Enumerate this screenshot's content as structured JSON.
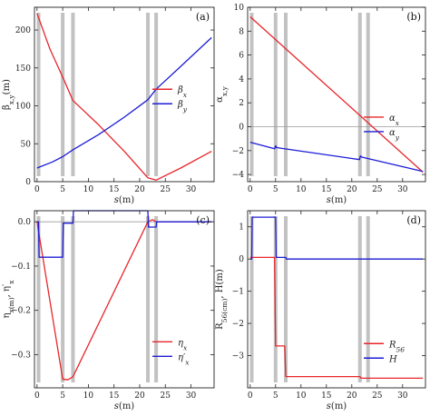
{
  "chart_data": [
    {
      "type": "line",
      "panel_label": "(a)",
      "xlabel": "s(m)",
      "ylabel": "β_{x,y}(m)",
      "xlim": [
        -0.5,
        34.5
      ],
      "ylim": [
        0,
        230
      ],
      "xticks": [
        0,
        5,
        10,
        15,
        20,
        25,
        30
      ],
      "yticks": [
        0,
        50,
        100,
        150,
        200
      ],
      "ytick_labels": [
        "0",
        "50",
        "100",
        "150",
        "200"
      ],
      "legend_position": "center-right",
      "elements_x": [
        0.3,
        5.0,
        7.0,
        21.6,
        23.2
      ],
      "series": [
        {
          "name": "β_x",
          "color": "#e8262b",
          "x": [
            0,
            2.5,
            5,
            7,
            12,
            17,
            21.6,
            23.2,
            28,
            34
          ],
          "y": [
            222,
            175,
            138,
            107,
            75,
            40,
            5,
            2,
            18,
            40
          ]
        },
        {
          "name": "β_y",
          "color": "#1c1cd6",
          "x": [
            0,
            3,
            5,
            7,
            12,
            17,
            21.6,
            23.2,
            28,
            34
          ],
          "y": [
            18,
            26,
            33,
            42,
            62,
            85,
            108,
            122,
            152,
            190
          ]
        }
      ]
    },
    {
      "type": "line",
      "panel_label": "(b)",
      "xlabel": "s(m)",
      "ylabel": "α_{x,y}",
      "xlim": [
        -0.5,
        34.5
      ],
      "ylim": [
        -4.6,
        10
      ],
      "xticks": [
        0,
        5,
        10,
        15,
        20,
        25,
        30
      ],
      "yticks": [
        -4,
        -2,
        0,
        2,
        4,
        6,
        8,
        10
      ],
      "ytick_labels": [
        "−4",
        "−2",
        "0",
        "2",
        "4",
        "6",
        "8",
        "10"
      ],
      "legend_position": "center-right",
      "zero_line": true,
      "elements_x": [
        0.3,
        5.0,
        7.0,
        21.6,
        23.2
      ],
      "series": [
        {
          "name": "α_x",
          "color": "#e8262b",
          "x": [
            0,
            34
          ],
          "y": [
            9.2,
            -3.8
          ]
        },
        {
          "name": "α_y",
          "color": "#1c1cd6",
          "x": [
            0,
            4.8,
            5.0,
            5.2,
            21.5,
            21.7,
            22.0,
            34
          ],
          "y": [
            -1.3,
            -1.85,
            -1.6,
            -1.75,
            -2.75,
            -2.45,
            -2.55,
            -3.75
          ]
        }
      ]
    },
    {
      "type": "line",
      "panel_label": "(c)",
      "xlabel": "s(m)",
      "ylabel": "η_x(m), η′_x",
      "xlim": [
        -0.5,
        34.5
      ],
      "ylim": [
        -0.375,
        0.025
      ],
      "xticks": [
        0,
        5,
        10,
        15,
        20,
        25,
        30
      ],
      "yticks": [
        0,
        -0.1,
        -0.2,
        -0.3
      ],
      "ytick_labels": [
        "0.0",
        "−0.1",
        "−0.2",
        "−0.3"
      ],
      "legend_position": "lower-right",
      "zero_line": true,
      "elements_x": [
        0.3,
        5.0,
        7.0,
        21.6,
        23.2
      ],
      "series": [
        {
          "name": "η_x",
          "color": "#e8262b",
          "x": [
            0,
            5,
            6,
            7,
            21.6,
            22.5,
            23.2,
            34
          ],
          "y": [
            0,
            -0.355,
            -0.357,
            -0.35,
            0,
            0.005,
            0,
            0
          ]
        },
        {
          "name": "η′_x",
          "color": "#1c1cd6",
          "x": [
            0,
            0.3,
            0.4,
            5.0,
            5.1,
            7.0,
            7.1,
            21.6,
            21.7,
            23.2,
            23.3,
            34
          ],
          "y": [
            0,
            0,
            -0.08,
            -0.08,
            -0.003,
            -0.003,
            0.025,
            0.025,
            -0.012,
            -0.012,
            0,
            0
          ]
        }
      ]
    },
    {
      "type": "line",
      "panel_label": "(d)",
      "xlabel": "s(m)",
      "ylabel": "R_56(cm), H(m)",
      "xlim": [
        -0.5,
        34.5
      ],
      "ylim": [
        -4.0,
        1.5
      ],
      "xticks": [
        0,
        5,
        10,
        15,
        20,
        25,
        30
      ],
      "yticks": [
        1,
        0,
        -1,
        -2,
        -3
      ],
      "ytick_labels": [
        "1",
        "0",
        "−1",
        "−2",
        "−3"
      ],
      "legend_position": "center-right",
      "elements_x": [
        0.3,
        5.0,
        7.0,
        21.6,
        23.2
      ],
      "series": [
        {
          "name": "R_56",
          "color": "#e8262b",
          "x": [
            0,
            4.8,
            5.0,
            6.8,
            7.0,
            21.6,
            21.8,
            34
          ],
          "y": [
            0.05,
            0.05,
            -2.7,
            -2.7,
            -3.65,
            -3.65,
            -3.7,
            -3.7
          ]
        },
        {
          "name": "H",
          "color": "#1c1cd6",
          "x": [
            0,
            0.3,
            0.4,
            5.0,
            5.1,
            7.0,
            7.1,
            34
          ],
          "y": [
            0,
            0,
            1.3,
            1.3,
            0.05,
            0.05,
            0,
            0
          ]
        }
      ]
    }
  ]
}
